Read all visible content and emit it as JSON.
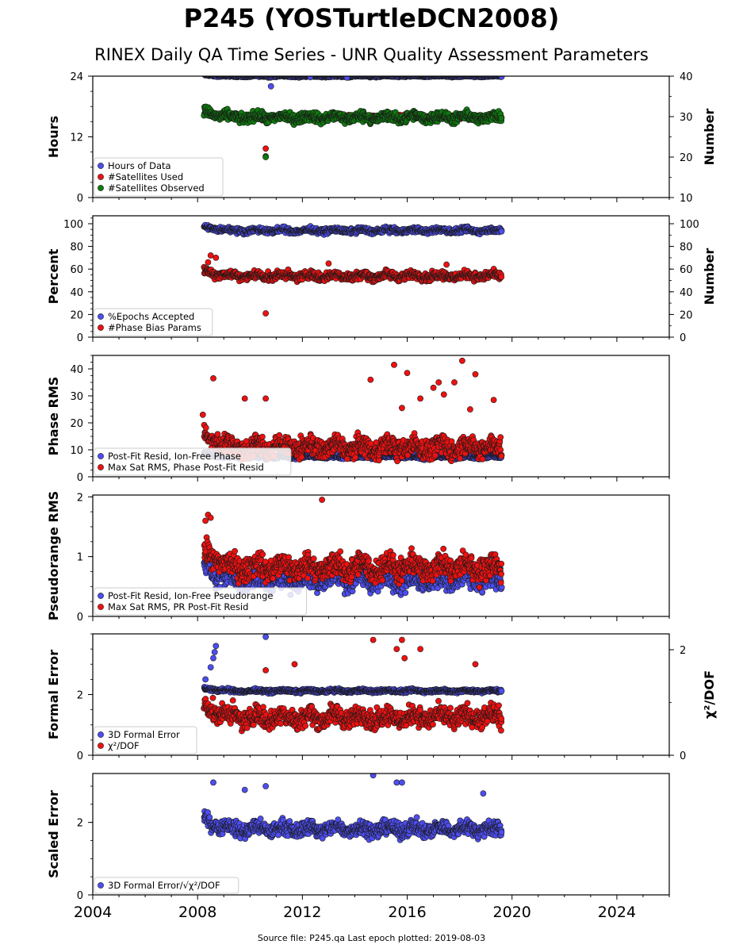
{
  "page": {
    "title": "P245 (YOSTurtleDCN2008)",
    "subtitle": "RINEX Daily QA Time Series - UNR Quality Assessment Parameters",
    "footer": "Source file: P245.qa Last epoch plotted: 2019-08-03"
  },
  "colors": {
    "blue": "#4d4df0",
    "red": "#ee1111",
    "green": "#0e7a0e",
    "edge": "#1a1a1a"
  },
  "chart_data": [
    {
      "type": "scatter",
      "ylabel": "Hours",
      "ylabel_right": "Number",
      "xlim": [
        2004,
        2026
      ],
      "xticks": [
        2004,
        2008,
        2012,
        2016,
        2020,
        2024
      ],
      "ylim": [
        0,
        24
      ],
      "yticks": [
        "0",
        "12",
        "24"
      ],
      "ylim_right": [
        10,
        40
      ],
      "yticks_right": [
        "10",
        "20",
        "30",
        "40"
      ],
      "legend_position": "lower-left",
      "series": [
        {
          "name": "Hours of Data",
          "color": "blue",
          "axis": "left",
          "start": 2008.25,
          "end": 2019.6,
          "base": 24,
          "spread": 0.2,
          "outliers": [
            [
              2010.8,
              22
            ],
            [
              2012.3,
              23.8
            ],
            [
              2013.7,
              23.7
            ]
          ]
        },
        {
          "name": "#Satellites Used",
          "color": "red",
          "axis": "right",
          "start": 2008.25,
          "end": 2019.6,
          "base": 30,
          "spread": 0.6,
          "outliers": [
            [
              2010.6,
              22.1
            ],
            [
              2009.8,
              30
            ]
          ]
        },
        {
          "name": "#Satellites Observed",
          "color": "green",
          "axis": "right",
          "start": 2008.25,
          "end": 2019.6,
          "base": 29.8,
          "spread": 1.3,
          "outliers": [
            [
              2010.6,
              20.2
            ],
            [
              2010.6,
              20.0
            ]
          ]
        }
      ]
    },
    {
      "type": "scatter",
      "ylabel": "Percent",
      "ylabel_right": "Number",
      "xlim": [
        2004,
        2026
      ],
      "xticks": [
        2004,
        2008,
        2012,
        2016,
        2020,
        2024
      ],
      "ylim": [
        0,
        107
      ],
      "yticks": [
        "0",
        "20",
        "40",
        "60",
        "80",
        "100"
      ],
      "ylim_right": [
        0,
        107
      ],
      "yticks_right": [
        "0",
        "20",
        "40",
        "60",
        "80",
        "100"
      ],
      "legend_position": "lower-left",
      "series": [
        {
          "name": "%Epochs Accepted",
          "color": "blue",
          "axis": "left",
          "start": 2008.25,
          "end": 2019.6,
          "base": 94,
          "spread": 2.5,
          "outliers": []
        },
        {
          "name": "#Phase Bias Params",
          "color": "red",
          "axis": "right",
          "start": 2008.25,
          "end": 2019.6,
          "base": 54,
          "spread": 4,
          "outliers": [
            [
              2010.6,
              21
            ],
            [
              2008.5,
              72
            ],
            [
              2008.7,
              70
            ],
            [
              2008.4,
              66
            ],
            [
              2017.5,
              64
            ],
            [
              2013,
              65
            ]
          ]
        }
      ]
    },
    {
      "type": "scatter",
      "ylabel": "Phase RMS",
      "xlim": [
        2004,
        2026
      ],
      "xticks": [
        2004,
        2008,
        2012,
        2016,
        2020,
        2024
      ],
      "ylim": [
        0,
        45
      ],
      "yticks": [
        "0",
        "10",
        "20",
        "30",
        "40"
      ],
      "legend_position": "lower-left",
      "series": [
        {
          "name": "Post-Fit Resid, Ion-Free Phase",
          "color": "blue",
          "axis": "left",
          "start": 2008.25,
          "end": 2019.6,
          "base": 7.5,
          "spread": 0.8,
          "outliers": []
        },
        {
          "name": "Max Sat RMS, Phase Post-Fit Resid",
          "color": "red",
          "axis": "left",
          "start": 2008.25,
          "end": 2019.6,
          "base": 11,
          "spread": 4,
          "outliers": [
            [
              2008.6,
              36.5
            ],
            [
              2015.5,
              41.5
            ],
            [
              2018.1,
              43
            ],
            [
              2016,
              38.5
            ],
            [
              2018.6,
              38
            ],
            [
              2017.2,
              35
            ],
            [
              2014.6,
              36
            ],
            [
              2017,
              33
            ],
            [
              2017.8,
              35
            ],
            [
              2016.5,
              29
            ],
            [
              2017.4,
              30.5
            ],
            [
              2010.6,
              29
            ],
            [
              2009.8,
              29
            ],
            [
              2019.3,
              28.5
            ],
            [
              2015.8,
              25.5
            ],
            [
              2008.2,
              23
            ],
            [
              2018.4,
              25
            ]
          ]
        }
      ]
    },
    {
      "type": "scatter",
      "ylabel": "Pseudorange RMS",
      "xlim": [
        2004,
        2026
      ],
      "xticks": [
        2004,
        2008,
        2012,
        2016,
        2020,
        2024
      ],
      "ylim": [
        0,
        2.03
      ],
      "yticks": [
        "0",
        "1",
        "2"
      ],
      "legend_position": "lower-left",
      "series": [
        {
          "name": "Post-Fit Resid, Ion-Free Pseudorange",
          "color": "blue",
          "axis": "left",
          "start": 2008.25,
          "end": 2019.6,
          "base": 0.62,
          "spread": 0.2,
          "outliers": []
        },
        {
          "name": "Max Sat RMS, PR Post-Fit Resid",
          "color": "red",
          "axis": "left",
          "start": 2008.25,
          "end": 2019.6,
          "base": 0.82,
          "spread": 0.22,
          "outliers": [
            [
              2012.75,
              1.95
            ],
            [
              2008.4,
              1.7
            ],
            [
              2008.5,
              1.65
            ],
            [
              2008.3,
              1.6
            ]
          ]
        }
      ]
    },
    {
      "type": "scatter",
      "ylabel": "Formal Error",
      "ylabel_right": "χ²/DOF",
      "xlim": [
        2004,
        2026
      ],
      "xticks": [
        2004,
        2008,
        2012,
        2016,
        2020,
        2024
      ],
      "ylim": [
        0,
        4
      ],
      "yticks": [
        "0",
        "2"
      ],
      "ylim_right": [
        0,
        2.3
      ],
      "yticks_right": [
        "0",
        "2"
      ],
      "legend_position": "lower-left",
      "series": [
        {
          "name": "3D Formal Error",
          "color": "blue",
          "axis": "left",
          "start": 2008.25,
          "end": 2019.6,
          "base": 2.12,
          "spread": 0.06,
          "outliers": [
            [
              2008.5,
              2.9
            ],
            [
              2008.6,
              3.2
            ],
            [
              2008.7,
              3.6
            ],
            [
              2008.65,
              3.4
            ],
            [
              2010.6,
              3.9
            ],
            [
              2008.3,
              2.5
            ]
          ]
        },
        {
          "name": "χ²/DOF",
          "color": "red",
          "axis": "left",
          "start": 2008.25,
          "end": 2019.6,
          "base": 1.25,
          "spread": 0.35,
          "outliers": [
            [
              2014.7,
              3.8
            ],
            [
              2015.8,
              3.8
            ],
            [
              2015.6,
              3.5
            ],
            [
              2016.5,
              3.5
            ],
            [
              2011.7,
              3.0
            ],
            [
              2010.6,
              2.8
            ],
            [
              2015.9,
              3.2
            ],
            [
              2018.6,
              3.0
            ]
          ]
        }
      ]
    },
    {
      "type": "scatter",
      "ylabel": "Scaled Error",
      "xlim": [
        2004,
        2026
      ],
      "xticks": [
        2004,
        2008,
        2012,
        2016,
        2020,
        2024
      ],
      "ylim": [
        0,
        3.35
      ],
      "yticks": [
        "0",
        "2"
      ],
      "legend_position": "lower-left",
      "series": [
        {
          "name": "3D Formal Error/√χ²/DOF",
          "color": "blue",
          "axis": "left",
          "start": 2008.25,
          "end": 2019.6,
          "base": 1.82,
          "spread": 0.22,
          "outliers": [
            [
              2014.7,
              3.3
            ],
            [
              2015.6,
              3.1
            ],
            [
              2015.8,
              3.1
            ],
            [
              2010.6,
              3.0
            ],
            [
              2008.6,
              3.1
            ],
            [
              2009.8,
              2.9
            ],
            [
              2018.9,
              2.8
            ]
          ]
        }
      ]
    }
  ]
}
